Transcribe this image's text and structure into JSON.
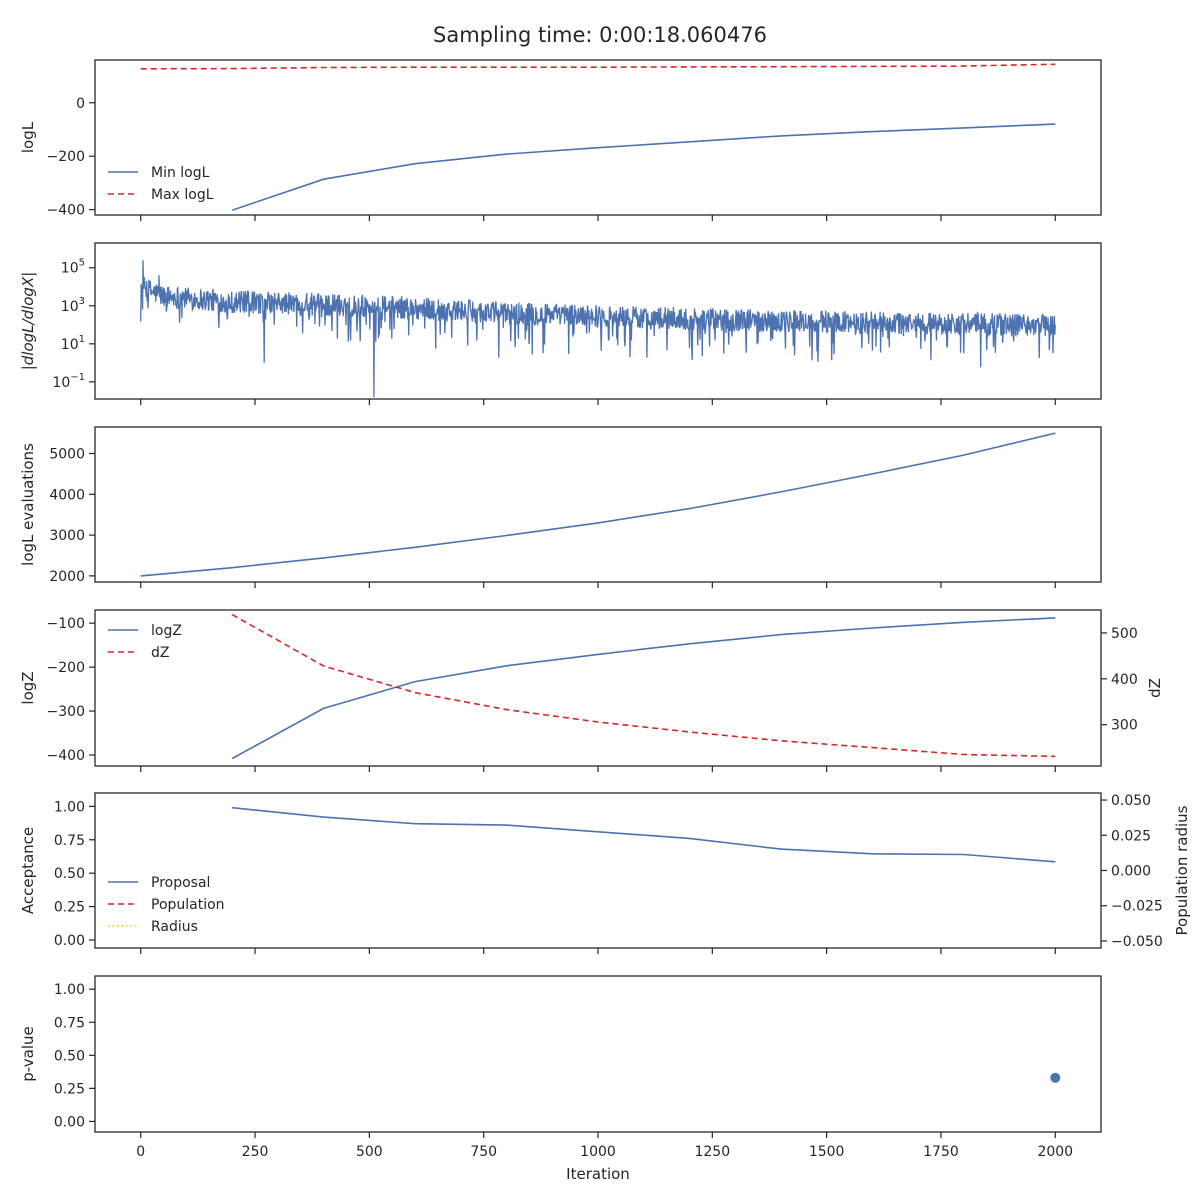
{
  "title": "Sampling time: 0:00:18.060476",
  "xlabel": "Iteration",
  "colors": {
    "blue": "#4c72b0",
    "red": "#d62728",
    "orange": "#ffbf00",
    "frame": "#262626"
  },
  "chart_data": [
    {
      "type": "line",
      "ylabel": "logL",
      "xlim": [
        -100,
        2100
      ],
      "ylim": [
        -420,
        160
      ],
      "yticks": [
        -400,
        -200,
        0
      ],
      "ytick_labels": [
        "−400",
        "−200",
        "0"
      ],
      "legend": "lower-left",
      "series": [
        {
          "name": "Min logL",
          "style": "solid",
          "color": "blue",
          "x": [
            200,
            400,
            600,
            800,
            1000,
            1200,
            1400,
            1600,
            1800,
            2000
          ],
          "y": [
            -402,
            -286,
            -228,
            -192,
            -168,
            -146,
            -124,
            -108,
            -94,
            -80
          ]
        },
        {
          "name": "Max logL",
          "style": "dashed",
          "color": "red",
          "x": [
            0,
            200,
            400,
            600,
            800,
            1000,
            1200,
            1400,
            1600,
            1800,
            1900,
            2000
          ],
          "y": [
            127,
            128,
            132,
            133,
            133,
            133,
            134,
            135,
            136,
            137,
            141,
            144
          ]
        }
      ]
    },
    {
      "type": "line",
      "ylabel": "|dlogL/dlogX|",
      "yscale": "log",
      "xlim": [
        -100,
        2100
      ],
      "ylim_log10": [
        -1.9,
        6.3
      ],
      "yticks_log10": [
        -1,
        1,
        3,
        5
      ],
      "ytick_bases": [
        "10",
        "10",
        "10",
        "10"
      ],
      "ytick_exponents": [
        "−1",
        "1",
        "3",
        "5"
      ],
      "series": [
        {
          "name": "",
          "style": "solid",
          "color": "blue",
          "noisy": true,
          "x_range": [
            0,
            2000
          ],
          "y_log10_trend": [
            [
              0,
              4.0
            ],
            [
              50,
              3.5
            ],
            [
              200,
              3.2
            ],
            [
              500,
              3.0
            ],
            [
              800,
              2.6
            ],
            [
              1200,
              2.3
            ],
            [
              1600,
              2.1
            ],
            [
              2000,
              2.0
            ]
          ],
          "notable_dips": [
            [
              270,
              0.0
            ],
            [
              510,
              -1.8
            ],
            [
              880,
              0.5
            ],
            [
              1070,
              0.3
            ],
            [
              1430,
              0.4
            ],
            [
              1800,
              0.5
            ],
            [
              1995,
              0.5
            ]
          ],
          "notable_peaks": [
            [
              5,
              5.4
            ],
            [
              40,
              4.6
            ]
          ]
        }
      ]
    },
    {
      "type": "line",
      "ylabel": "logL evaluations",
      "xlim": [
        -100,
        2100
      ],
      "ylim": [
        1850,
        5650
      ],
      "yticks": [
        2000,
        3000,
        4000,
        5000
      ],
      "ytick_labels": [
        "2000",
        "3000",
        "4000",
        "5000"
      ],
      "series": [
        {
          "name": "",
          "style": "solid",
          "color": "blue",
          "x": [
            0,
            200,
            400,
            600,
            800,
            1000,
            1200,
            1400,
            1600,
            1800,
            2000
          ],
          "y": [
            2000,
            2200,
            2440,
            2700,
            2990,
            3300,
            3650,
            4060,
            4500,
            4960,
            5500
          ]
        }
      ]
    },
    {
      "type": "line",
      "ylabel": "logZ",
      "y2label": "dZ",
      "xlim": [
        -100,
        2100
      ],
      "ylim": [
        -425,
        -70
      ],
      "yticks": [
        -400,
        -300,
        -200,
        -100
      ],
      "ytick_labels": [
        "−400",
        "−300",
        "−200",
        "−100"
      ],
      "y2lim": [
        210,
        550
      ],
      "y2ticks": [
        300,
        400,
        500
      ],
      "y2tick_labels": [
        "300",
        "400",
        "500"
      ],
      "legend": "upper-left",
      "series": [
        {
          "name": "logZ",
          "style": "solid",
          "color": "blue",
          "axis": "left",
          "x": [
            200,
            400,
            600,
            800,
            1000,
            1200,
            1400,
            1600,
            1800,
            2000
          ],
          "y": [
            -408,
            -294,
            -233,
            -197,
            -171,
            -147,
            -126,
            -111,
            -98,
            -88
          ]
        },
        {
          "name": "dZ",
          "style": "dashed",
          "color": "red",
          "axis": "right",
          "x": [
            200,
            400,
            600,
            800,
            1000,
            1200,
            1400,
            1600,
            1800,
            2000
          ],
          "y": [
            540,
            428,
            370,
            333,
            306,
            284,
            265,
            250,
            235,
            231
          ]
        }
      ]
    },
    {
      "type": "line",
      "ylabel": "Acceptance",
      "y2label": "Population radius",
      "xlim": [
        -100,
        2100
      ],
      "ylim": [
        -0.06,
        1.1
      ],
      "yticks": [
        0.0,
        0.25,
        0.5,
        0.75,
        1.0
      ],
      "ytick_labels": [
        "0.00",
        "0.25",
        "0.50",
        "0.75",
        "1.00"
      ],
      "y2lim": [
        -0.055,
        0.055
      ],
      "y2ticks": [
        -0.05,
        -0.025,
        0.0,
        0.025,
        0.05
      ],
      "y2tick_labels": [
        "−0.050",
        "−0.025",
        "0.000",
        "0.025",
        "0.050"
      ],
      "legend": "lower-left",
      "series": [
        {
          "name": "Proposal",
          "style": "solid",
          "color": "blue",
          "x": [
            200,
            400,
            600,
            800,
            1000,
            1200,
            1400,
            1600,
            1800,
            2000
          ],
          "y": [
            0.99,
            0.92,
            0.87,
            0.86,
            0.81,
            0.76,
            0.68,
            0.645,
            0.64,
            0.585
          ]
        },
        {
          "name": "Population",
          "style": "dashed",
          "color": "red",
          "x": [],
          "y": []
        },
        {
          "name": "Radius",
          "style": "dotted",
          "color": "orange",
          "x": [],
          "y": []
        }
      ]
    },
    {
      "type": "scatter",
      "ylabel": "p-value",
      "xlim": [
        -100,
        2100
      ],
      "ylim": [
        -0.08,
        1.1
      ],
      "yticks": [
        0.0,
        0.25,
        0.5,
        0.75,
        1.0
      ],
      "ytick_labels": [
        "0.00",
        "0.25",
        "0.50",
        "0.75",
        "1.00"
      ],
      "xticks": [
        0,
        250,
        500,
        750,
        1000,
        1250,
        1500,
        1750,
        2000
      ],
      "xtick_labels": [
        "0",
        "250",
        "500",
        "750",
        "1000",
        "1250",
        "1500",
        "1750",
        "2000"
      ],
      "series": [
        {
          "name": "",
          "color": "blue",
          "x": [
            2000
          ],
          "y": [
            0.33
          ]
        }
      ]
    }
  ]
}
